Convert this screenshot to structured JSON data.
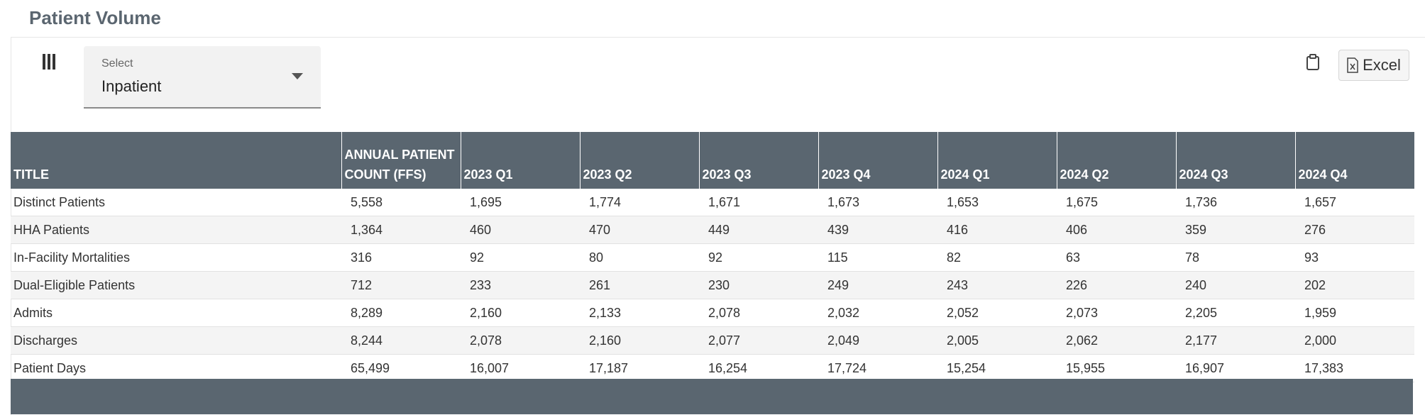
{
  "header": {
    "title": "Patient Volume"
  },
  "toolbar": {
    "select_label": "Select",
    "select_value": "Inpatient",
    "export_button": "Excel"
  },
  "table": {
    "columns": [
      "TITLE",
      "ANNUAL PATIENT COUNT (FFS)",
      "2023 Q1",
      "2023 Q2",
      "2023 Q3",
      "2023 Q4",
      "2024 Q1",
      "2024 Q2",
      "2024 Q3",
      "2024 Q4"
    ],
    "rows": [
      [
        "Distinct Patients",
        "5,558",
        "1,695",
        "1,774",
        "1,671",
        "1,673",
        "1,653",
        "1,675",
        "1,736",
        "1,657"
      ],
      [
        "HHA Patients",
        "1,364",
        "460",
        "470",
        "449",
        "439",
        "416",
        "406",
        "359",
        "276"
      ],
      [
        "In-Facility Mortalities",
        "316",
        "92",
        "80",
        "92",
        "115",
        "82",
        "63",
        "78",
        "93"
      ],
      [
        "Dual-Eligible Patients",
        "712",
        "233",
        "261",
        "230",
        "249",
        "243",
        "226",
        "240",
        "202"
      ],
      [
        "Admits",
        "8,289",
        "2,160",
        "2,133",
        "2,078",
        "2,032",
        "2,052",
        "2,073",
        "2,205",
        "1,959"
      ],
      [
        "Discharges",
        "8,244",
        "2,078",
        "2,160",
        "2,077",
        "2,049",
        "2,005",
        "2,062",
        "2,177",
        "2,000"
      ],
      [
        "Patient Days",
        "65,499",
        "16,007",
        "17,187",
        "16,254",
        "17,724",
        "15,254",
        "15,955",
        "16,907",
        "17,383"
      ]
    ]
  }
}
